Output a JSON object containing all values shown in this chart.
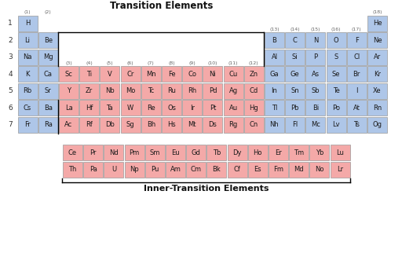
{
  "blue_color": "#aec6e8",
  "red_color": "#f4a9a8",
  "white_bg": "#ffffff",
  "elements": [
    {
      "symbol": "H",
      "row": 1,
      "col": 1,
      "color": "blue"
    },
    {
      "symbol": "He",
      "row": 1,
      "col": 18,
      "color": "blue"
    },
    {
      "symbol": "Li",
      "row": 2,
      "col": 1,
      "color": "blue"
    },
    {
      "symbol": "Be",
      "row": 2,
      "col": 2,
      "color": "blue"
    },
    {
      "symbol": "B",
      "row": 2,
      "col": 13,
      "color": "blue"
    },
    {
      "symbol": "C",
      "row": 2,
      "col": 14,
      "color": "blue"
    },
    {
      "symbol": "N",
      "row": 2,
      "col": 15,
      "color": "blue"
    },
    {
      "symbol": "O",
      "row": 2,
      "col": 16,
      "color": "blue"
    },
    {
      "symbol": "F",
      "row": 2,
      "col": 17,
      "color": "blue"
    },
    {
      "symbol": "Ne",
      "row": 2,
      "col": 18,
      "color": "blue"
    },
    {
      "symbol": "Na",
      "row": 3,
      "col": 1,
      "color": "blue"
    },
    {
      "symbol": "Mg",
      "row": 3,
      "col": 2,
      "color": "blue"
    },
    {
      "symbol": "Al",
      "row": 3,
      "col": 13,
      "color": "blue"
    },
    {
      "symbol": "Si",
      "row": 3,
      "col": 14,
      "color": "blue"
    },
    {
      "symbol": "P",
      "row": 3,
      "col": 15,
      "color": "blue"
    },
    {
      "symbol": "S",
      "row": 3,
      "col": 16,
      "color": "blue"
    },
    {
      "symbol": "Cl",
      "row": 3,
      "col": 17,
      "color": "blue"
    },
    {
      "symbol": "Ar",
      "row": 3,
      "col": 18,
      "color": "blue"
    },
    {
      "symbol": "K",
      "row": 4,
      "col": 1,
      "color": "blue"
    },
    {
      "symbol": "Ca",
      "row": 4,
      "col": 2,
      "color": "blue"
    },
    {
      "symbol": "Sc",
      "row": 4,
      "col": 3,
      "color": "red"
    },
    {
      "symbol": "Ti",
      "row": 4,
      "col": 4,
      "color": "red"
    },
    {
      "symbol": "V",
      "row": 4,
      "col": 5,
      "color": "red"
    },
    {
      "symbol": "Cr",
      "row": 4,
      "col": 6,
      "color": "red"
    },
    {
      "symbol": "Mn",
      "row": 4,
      "col": 7,
      "color": "red"
    },
    {
      "symbol": "Fe",
      "row": 4,
      "col": 8,
      "color": "red"
    },
    {
      "symbol": "Co",
      "row": 4,
      "col": 9,
      "color": "red"
    },
    {
      "symbol": "Ni",
      "row": 4,
      "col": 10,
      "color": "red"
    },
    {
      "symbol": "Cu",
      "row": 4,
      "col": 11,
      "color": "red"
    },
    {
      "symbol": "Zn",
      "row": 4,
      "col": 12,
      "color": "red"
    },
    {
      "symbol": "Ga",
      "row": 4,
      "col": 13,
      "color": "blue"
    },
    {
      "symbol": "Ge",
      "row": 4,
      "col": 14,
      "color": "blue"
    },
    {
      "symbol": "As",
      "row": 4,
      "col": 15,
      "color": "blue"
    },
    {
      "symbol": "Se",
      "row": 4,
      "col": 16,
      "color": "blue"
    },
    {
      "symbol": "Br",
      "row": 4,
      "col": 17,
      "color": "blue"
    },
    {
      "symbol": "Kr",
      "row": 4,
      "col": 18,
      "color": "blue"
    },
    {
      "symbol": "Rb",
      "row": 5,
      "col": 1,
      "color": "blue"
    },
    {
      "symbol": "Sr",
      "row": 5,
      "col": 2,
      "color": "blue"
    },
    {
      "symbol": "Y",
      "row": 5,
      "col": 3,
      "color": "red"
    },
    {
      "symbol": "Zr",
      "row": 5,
      "col": 4,
      "color": "red"
    },
    {
      "symbol": "Nb",
      "row": 5,
      "col": 5,
      "color": "red"
    },
    {
      "symbol": "Mo",
      "row": 5,
      "col": 6,
      "color": "red"
    },
    {
      "symbol": "Tc",
      "row": 5,
      "col": 7,
      "color": "red"
    },
    {
      "symbol": "Ru",
      "row": 5,
      "col": 8,
      "color": "red"
    },
    {
      "symbol": "Rh",
      "row": 5,
      "col": 9,
      "color": "red"
    },
    {
      "symbol": "Pd",
      "row": 5,
      "col": 10,
      "color": "red"
    },
    {
      "symbol": "Ag",
      "row": 5,
      "col": 11,
      "color": "red"
    },
    {
      "symbol": "Cd",
      "row": 5,
      "col": 12,
      "color": "red"
    },
    {
      "symbol": "In",
      "row": 5,
      "col": 13,
      "color": "blue"
    },
    {
      "symbol": "Sn",
      "row": 5,
      "col": 14,
      "color": "blue"
    },
    {
      "symbol": "Sb",
      "row": 5,
      "col": 15,
      "color": "blue"
    },
    {
      "symbol": "Te",
      "row": 5,
      "col": 16,
      "color": "blue"
    },
    {
      "symbol": "I",
      "row": 5,
      "col": 17,
      "color": "blue"
    },
    {
      "symbol": "Xe",
      "row": 5,
      "col": 18,
      "color": "blue"
    },
    {
      "symbol": "Cs",
      "row": 6,
      "col": 1,
      "color": "blue"
    },
    {
      "symbol": "Ba",
      "row": 6,
      "col": 2,
      "color": "blue"
    },
    {
      "symbol": "La",
      "row": 6,
      "col": 3,
      "color": "red"
    },
    {
      "symbol": "Hf",
      "row": 6,
      "col": 4,
      "color": "red"
    },
    {
      "symbol": "Ta",
      "row": 6,
      "col": 5,
      "color": "red"
    },
    {
      "symbol": "W",
      "row": 6,
      "col": 6,
      "color": "red"
    },
    {
      "symbol": "Re",
      "row": 6,
      "col": 7,
      "color": "red"
    },
    {
      "symbol": "Os",
      "row": 6,
      "col": 8,
      "color": "red"
    },
    {
      "symbol": "Ir",
      "row": 6,
      "col": 9,
      "color": "red"
    },
    {
      "symbol": "Pt",
      "row": 6,
      "col": 10,
      "color": "red"
    },
    {
      "symbol": "Au",
      "row": 6,
      "col": 11,
      "color": "red"
    },
    {
      "symbol": "Hg",
      "row": 6,
      "col": 12,
      "color": "red"
    },
    {
      "symbol": "Tl",
      "row": 6,
      "col": 13,
      "color": "blue"
    },
    {
      "symbol": "Pb",
      "row": 6,
      "col": 14,
      "color": "blue"
    },
    {
      "symbol": "Bi",
      "row": 6,
      "col": 15,
      "color": "blue"
    },
    {
      "symbol": "Po",
      "row": 6,
      "col": 16,
      "color": "blue"
    },
    {
      "symbol": "At",
      "row": 6,
      "col": 17,
      "color": "blue"
    },
    {
      "symbol": "Rn",
      "row": 6,
      "col": 18,
      "color": "blue"
    },
    {
      "symbol": "Fr",
      "row": 7,
      "col": 1,
      "color": "blue"
    },
    {
      "symbol": "Ra",
      "row": 7,
      "col": 2,
      "color": "blue"
    },
    {
      "symbol": "Ac",
      "row": 7,
      "col": 3,
      "color": "red"
    },
    {
      "symbol": "Rf",
      "row": 7,
      "col": 4,
      "color": "red"
    },
    {
      "symbol": "Db",
      "row": 7,
      "col": 5,
      "color": "red"
    },
    {
      "symbol": "Sg",
      "row": 7,
      "col": 6,
      "color": "red"
    },
    {
      "symbol": "Bh",
      "row": 7,
      "col": 7,
      "color": "red"
    },
    {
      "symbol": "Hs",
      "row": 7,
      "col": 8,
      "color": "red"
    },
    {
      "symbol": "Mt",
      "row": 7,
      "col": 9,
      "color": "red"
    },
    {
      "symbol": "Ds",
      "row": 7,
      "col": 10,
      "color": "red"
    },
    {
      "symbol": "Rg",
      "row": 7,
      "col": 11,
      "color": "red"
    },
    {
      "symbol": "Cn",
      "row": 7,
      "col": 12,
      "color": "red"
    },
    {
      "symbol": "Nh",
      "row": 7,
      "col": 13,
      "color": "blue"
    },
    {
      "symbol": "Fl",
      "row": 7,
      "col": 14,
      "color": "blue"
    },
    {
      "symbol": "Mc",
      "row": 7,
      "col": 15,
      "color": "blue"
    },
    {
      "symbol": "Lv",
      "row": 7,
      "col": 16,
      "color": "blue"
    },
    {
      "symbol": "Ts",
      "row": 7,
      "col": 17,
      "color": "blue"
    },
    {
      "symbol": "Og",
      "row": 7,
      "col": 18,
      "color": "blue"
    }
  ],
  "lanthanides": [
    "Ce",
    "Pr",
    "Nd",
    "Pm",
    "Sm",
    "Eu",
    "Gd",
    "Tb",
    "Dy",
    "Ho",
    "Er",
    "Tm",
    "Yb",
    "Lu"
  ],
  "actinides": [
    "Th",
    "Pa",
    "U",
    "Np",
    "Pu",
    "Am",
    "Cm",
    "Bk",
    "Cf",
    "Es",
    "Fm",
    "Md",
    "No",
    "Lr"
  ],
  "group_labels_top": [
    {
      "text": "(1)",
      "col": 1
    },
    {
      "text": "(2)",
      "col": 2
    },
    {
      "text": "(18)",
      "col": 18
    }
  ],
  "group_labels_mid": [
    {
      "text": "(3)",
      "col": 3
    },
    {
      "text": "(4)",
      "col": 4
    },
    {
      "text": "(5)",
      "col": 5
    },
    {
      "text": "(6)",
      "col": 6
    },
    {
      "text": "(7)",
      "col": 7
    },
    {
      "text": "(8)",
      "col": 8
    },
    {
      "text": "(9)",
      "col": 9
    },
    {
      "text": "(10)",
      "col": 10
    },
    {
      "text": "(11)",
      "col": 11
    },
    {
      "text": "(12)",
      "col": 12
    }
  ],
  "group_labels_right": [
    {
      "text": "(13)",
      "col": 13
    },
    {
      "text": "(14)",
      "col": 14
    },
    {
      "text": "(15)",
      "col": 15
    },
    {
      "text": "(16)",
      "col": 16
    },
    {
      "text": "(17)",
      "col": 17
    }
  ],
  "transition_label": "Transition Elements",
  "inner_transition_label": "Inner-Transition Elements",
  "row_labels": [
    "1",
    "2",
    "3",
    "4",
    "5",
    "6",
    "7"
  ],
  "cell_font_size": 6.0,
  "label_font_size": 4.5,
  "period_font_size": 6.5,
  "title_font_size": 8.5,
  "inner_title_font_size": 8.0
}
